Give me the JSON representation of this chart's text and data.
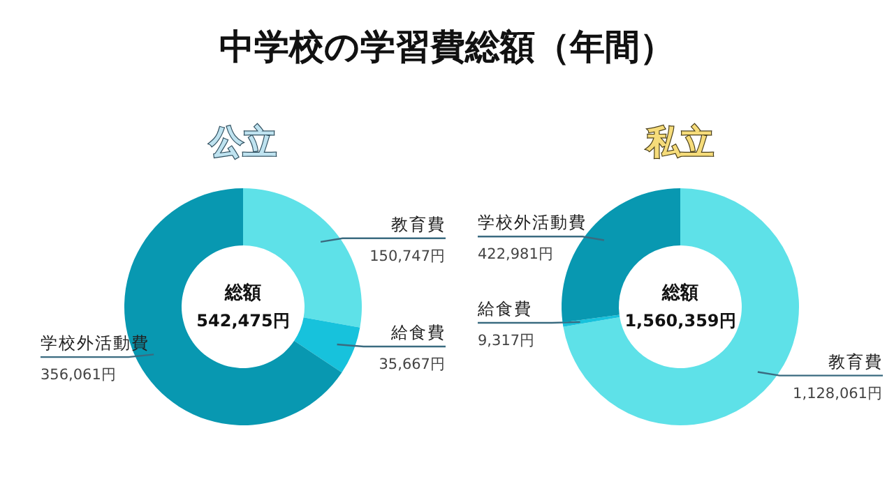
{
  "chart_data": [
    {
      "type": "other",
      "title": "中学校の学習費総額（年間）"
    },
    {
      "type": "donut",
      "title": "公立",
      "categories": [
        "教育費",
        "給食費",
        "学校外活動費"
      ],
      "values": [
        150747,
        35667,
        356061
      ],
      "value_labels": [
        "150,747円",
        "35,667円",
        "356,061円"
      ],
      "colors": [
        "#5ee1e8",
        "#17c2dc",
        "#0898b1"
      ],
      "annotations": [
        "総額",
        "542,475円"
      ]
    },
    {
      "type": "donut",
      "title": "私立",
      "categories": [
        "教育費",
        "給食費",
        "学校外活動費"
      ],
      "values": [
        1128061,
        9317,
        422981
      ],
      "value_labels": [
        "1,128,061円",
        "9,317円",
        "422,981円"
      ],
      "colors": [
        "#5ee1e8",
        "#17c2dc",
        "#0898b1"
      ],
      "annotations": [
        "総額",
        "1,560,359円"
      ]
    }
  ]
}
